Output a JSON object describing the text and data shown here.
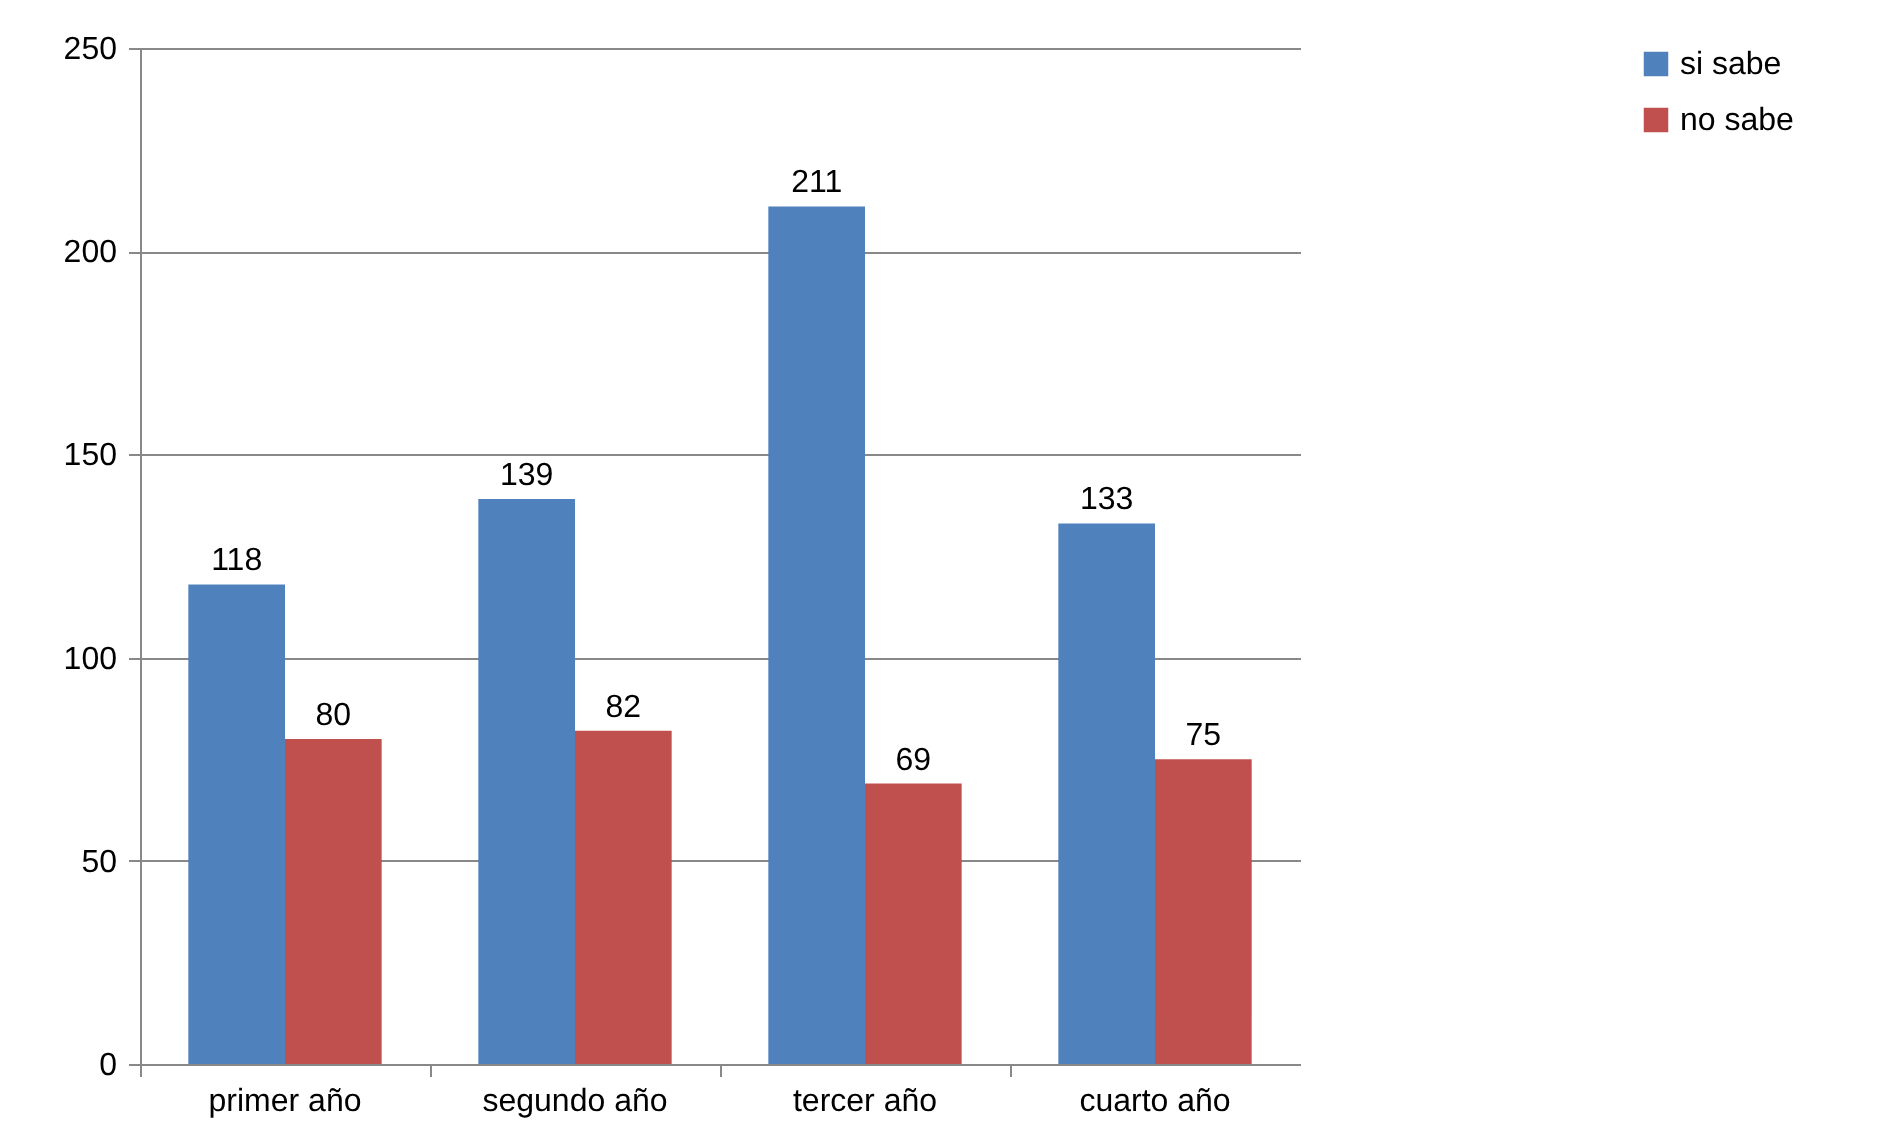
{
  "chart_data": {
    "type": "bar",
    "categories": [
      "primer año",
      "segundo año",
      "tercer año",
      "cuarto año"
    ],
    "series": [
      {
        "name": "si sabe",
        "color": "#4f81bd",
        "values": [
          118,
          139,
          211,
          133
        ]
      },
      {
        "name": "no sabe",
        "color": "#c0504d",
        "values": [
          80,
          82,
          69,
          75
        ]
      }
    ],
    "ylim": [
      0,
      250
    ],
    "yticks": [
      0,
      50,
      100,
      150,
      200,
      250
    ],
    "grid": "y",
    "legend": "right",
    "data_labels": true
  }
}
